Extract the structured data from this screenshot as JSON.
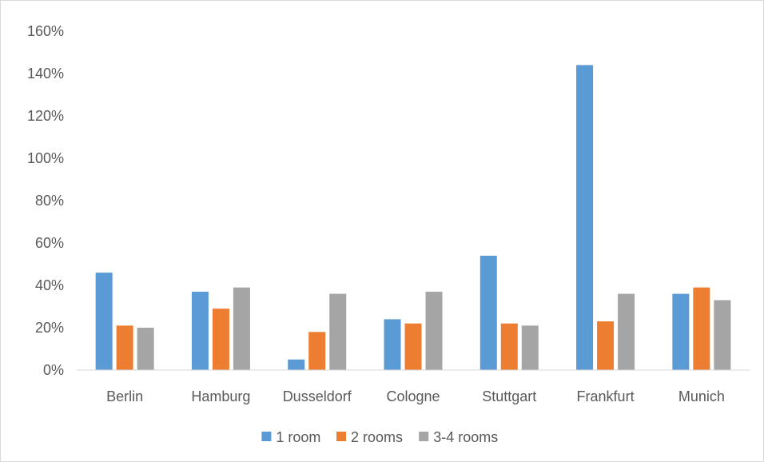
{
  "chart_data": {
    "type": "bar",
    "title": "",
    "xlabel": "",
    "ylabel": "",
    "categories": [
      "Berlin",
      "Hamburg",
      "Dusseldorf",
      "Cologne",
      "Stuttgart",
      "Frankfurt",
      "Munich"
    ],
    "series": [
      {
        "name": "1 room",
        "color": "#5b9bd5",
        "values": [
          46,
          37,
          5,
          24,
          54,
          144,
          36
        ]
      },
      {
        "name": "2 rooms",
        "color": "#ed7d31",
        "values": [
          21,
          29,
          18,
          22,
          22,
          23,
          39
        ]
      },
      {
        "name": "3-4 rooms",
        "color": "#a5a5a5",
        "values": [
          20,
          39,
          36,
          37,
          21,
          36,
          33
        ]
      }
    ],
    "ylim": [
      0,
      160
    ],
    "yticks": [
      0,
      20,
      40,
      60,
      80,
      100,
      120,
      140,
      160
    ],
    "ytick_suffix": "%",
    "grid": false,
    "legend_position": "bottom"
  }
}
